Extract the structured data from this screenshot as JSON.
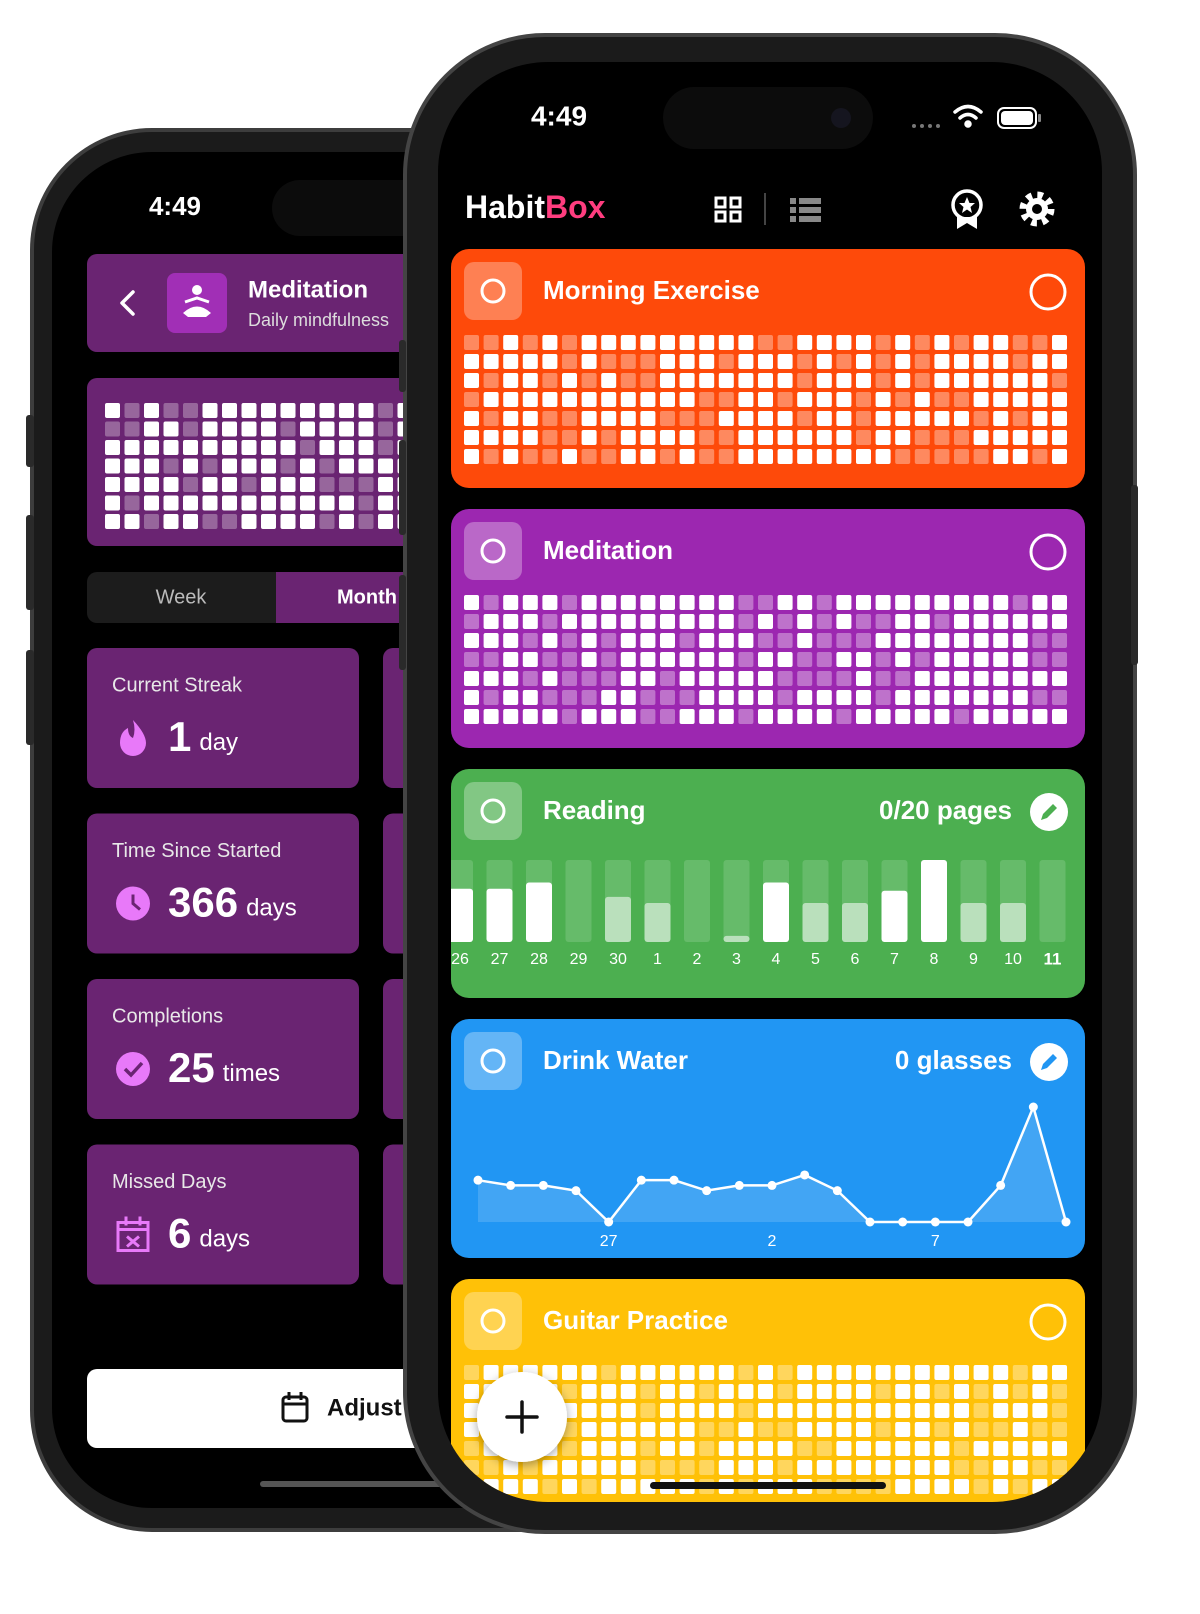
{
  "left_screen": {
    "status_time": "4:49",
    "header": {
      "title": "Meditation",
      "subtitle": "Daily mindfulness"
    },
    "tabs": [
      "Week",
      "Month"
    ],
    "stats": [
      {
        "label": "Current Streak",
        "value": 1,
        "unit": "day"
      },
      {
        "label": "Time Since Started",
        "value": 366,
        "unit": "days"
      },
      {
        "label": "Completions",
        "value": 25,
        "unit": "times"
      },
      {
        "label": "Missed Days",
        "value": 6,
        "unit": "days"
      }
    ],
    "button": "Adjust"
  },
  "right_screen": {
    "status_time": "4:49",
    "app_name": [
      "Habit",
      "Box"
    ],
    "habits": [
      {
        "name": "Morning Exercise"
      },
      {
        "name": "Meditation"
      },
      {
        "name": "Reading",
        "progress": "0/20 pages"
      },
      {
        "name": "Drink Water",
        "progress": "0 glasses"
      },
      {
        "name": "Guitar Practice"
      }
    ]
  },
  "chart_data": [
    {
      "type": "bar",
      "categories": [
        "26",
        "27",
        "28",
        "29",
        "30",
        "1",
        "2",
        "3",
        "4",
        "5",
        "6",
        "7",
        "8",
        "9",
        "10",
        "11"
      ],
      "values": [
        13,
        13,
        14.5,
        0,
        11,
        9.5,
        0,
        1.5,
        14.5,
        9.5,
        9.5,
        12.5,
        20,
        9.5,
        9.5,
        0
      ],
      "ylim": [
        0,
        20
      ]
    },
    {
      "type": "line",
      "categories": [
        null,
        null,
        null,
        null,
        "27",
        null,
        null,
        null,
        null,
        "2",
        null,
        null,
        null,
        null,
        "7",
        null,
        null,
        null,
        null
      ],
      "values": [
        8,
        7,
        7,
        6,
        0,
        8,
        8,
        6,
        7,
        7,
        9,
        6,
        0,
        0,
        0,
        0,
        7,
        22,
        0
      ],
      "ylim": [
        0,
        22
      ]
    }
  ]
}
